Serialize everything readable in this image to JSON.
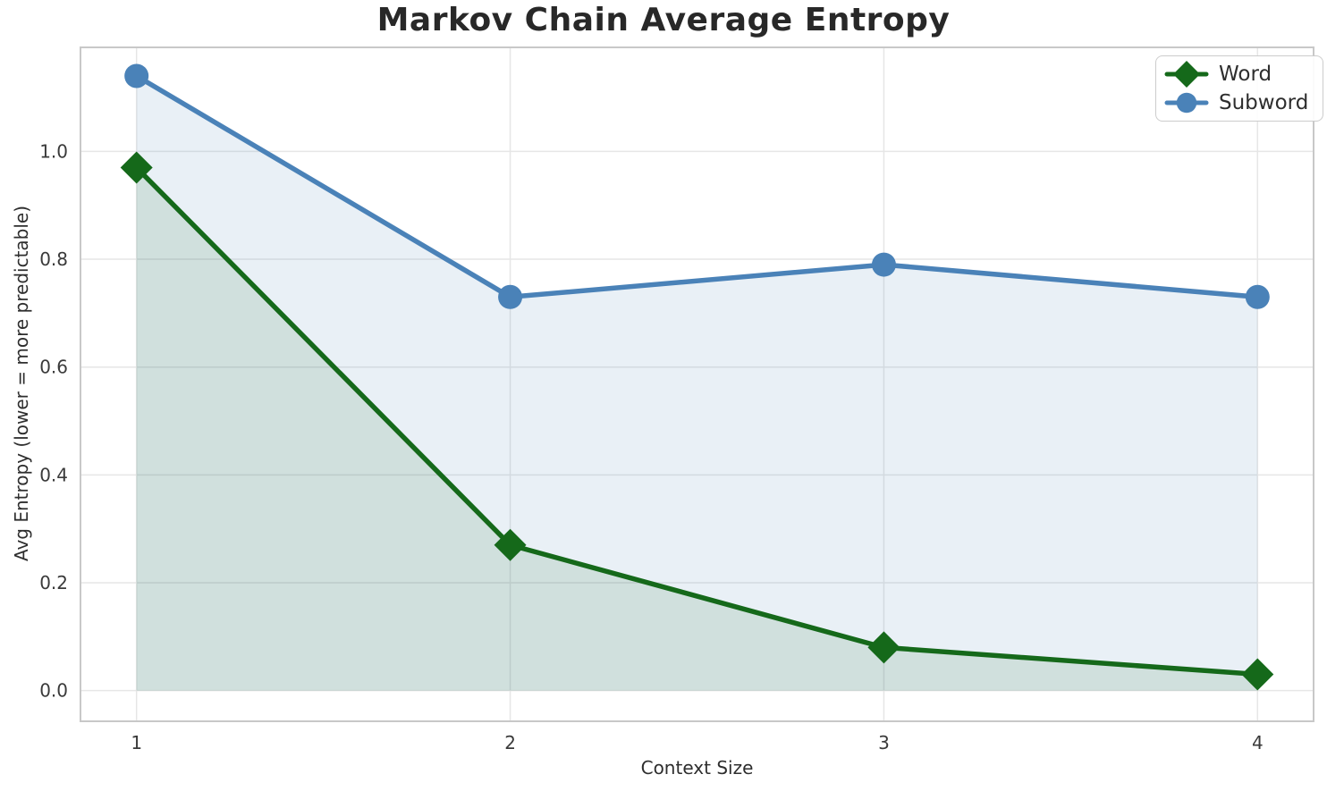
{
  "chart_data": {
    "type": "line",
    "title": "Markov Chain Average Entropy",
    "xlabel": "Context Size",
    "ylabel": "Avg Entropy (lower = more predictable)",
    "x": [
      1,
      2,
      3,
      4
    ],
    "xtick_labels": [
      "1",
      "2",
      "3",
      "4"
    ],
    "yticks": [
      0.0,
      0.2,
      0.4,
      0.6,
      0.8,
      1.0
    ],
    "ytick_labels": [
      "0.0",
      "0.2",
      "0.4",
      "0.6",
      "0.8",
      "1.0"
    ],
    "xlim": [
      0.85,
      4.15
    ],
    "ylim": [
      -0.057,
      1.193
    ],
    "grid": true,
    "legend_position": "upper right",
    "area_fill_to_zero": true,
    "series": [
      {
        "name": "Word",
        "marker": "diamond",
        "color": "#15691a",
        "fill_opacity": 0.12,
        "values": [
          0.97,
          0.27,
          0.08,
          0.03
        ]
      },
      {
        "name": "Subword",
        "marker": "circle",
        "color": "#4a82b8",
        "fill_opacity": 0.12,
        "values": [
          1.14,
          0.73,
          0.79,
          0.73
        ]
      }
    ],
    "style": {
      "background": "#ffffff",
      "grid_color": "#e6e6e6",
      "spine_color": "#c8c8c8",
      "title_color": "#282828",
      "tick_color": "#3a3a3a",
      "label_color": "#2e2e2e",
      "legend_border": "#cccccc",
      "line_width": 5.5,
      "marker_half_size": 18
    }
  }
}
